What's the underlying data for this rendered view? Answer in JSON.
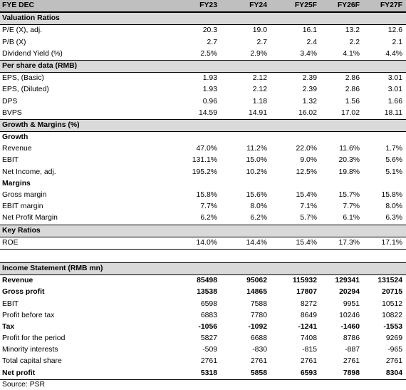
{
  "header": {
    "label": "FYE DEC",
    "years": [
      "FY23",
      "FY24",
      "FY25F",
      "FY26F",
      "FY27F"
    ]
  },
  "valuation": {
    "title": "Valuation Ratios",
    "rows": [
      {
        "label": "P/E (X), adj.",
        "values": [
          "20.3",
          "19.0",
          "16.1",
          "13.2",
          "12.6"
        ]
      },
      {
        "label": "P/B (X)",
        "values": [
          "2.7",
          "2.7",
          "2.4",
          "2.2",
          "2.1"
        ]
      },
      {
        "label": "Dividend Yield (%)",
        "values": [
          "2.5%",
          "2.9%",
          "3.4%",
          "4.1%",
          "4.4%"
        ]
      }
    ]
  },
  "per_share": {
    "title": "Per share data (RMB)",
    "rows": [
      {
        "label": "EPS, (Basic)",
        "values": [
          "1.93",
          "2.12",
          "2.39",
          "2.86",
          "3.01"
        ]
      },
      {
        "label": "EPS, (Diluted)",
        "values": [
          "1.93",
          "2.12",
          "2.39",
          "2.86",
          "3.01"
        ]
      },
      {
        "label": "DPS",
        "values": [
          "0.96",
          "1.18",
          "1.32",
          "1.56",
          "1.66"
        ]
      },
      {
        "label": "BVPS",
        "values": [
          "14.59",
          "14.91",
          "16.02",
          "17.02",
          "18.11"
        ]
      }
    ]
  },
  "growth_margins": {
    "title": "Growth & Margins (%)",
    "growth_title": "Growth",
    "growth_rows": [
      {
        "label": "Revenue",
        "values": [
          "47.0%",
          "11.2%",
          "22.0%",
          "11.6%",
          "1.7%"
        ]
      },
      {
        "label": "EBIT",
        "values": [
          "131.1%",
          "15.0%",
          "9.0%",
          "20.3%",
          "5.6%"
        ]
      },
      {
        "label": "Net Income, adj.",
        "values": [
          "195.2%",
          "10.2%",
          "12.5%",
          "19.8%",
          "5.1%"
        ]
      }
    ],
    "margins_title": "Margins",
    "margin_rows": [
      {
        "label": "Gross margin",
        "values": [
          "15.8%",
          "15.6%",
          "15.4%",
          "15.7%",
          "15.8%"
        ]
      },
      {
        "label": "EBIT margin",
        "values": [
          "7.7%",
          "8.0%",
          "7.1%",
          "7.7%",
          "8.0%"
        ]
      },
      {
        "label": "Net Profit Margin",
        "values": [
          "6.2%",
          "6.2%",
          "5.7%",
          "6.1%",
          "6.3%"
        ]
      }
    ]
  },
  "key_ratios": {
    "title": "Key Ratios",
    "rows": [
      {
        "label": "ROE",
        "values": [
          "14.0%",
          "14.4%",
          "15.4%",
          "17.3%",
          "17.1%"
        ]
      }
    ]
  },
  "income_statement": {
    "title": "Income Statement (RMB mn)",
    "rows": [
      {
        "label": "Revenue",
        "bold": true,
        "values": [
          "85498",
          "95062",
          "115932",
          "129341",
          "131524"
        ]
      },
      {
        "label": "Gross profit",
        "bold": true,
        "values": [
          "13538",
          "14865",
          "17807",
          "20294",
          "20715"
        ]
      },
      {
        "label": "EBIT",
        "bold": false,
        "values": [
          "6598",
          "7588",
          "8272",
          "9951",
          "10512"
        ]
      },
      {
        "label": "Profit before tax",
        "bold": false,
        "values": [
          "6883",
          "7780",
          "8649",
          "10246",
          "10822"
        ]
      },
      {
        "label": "Tax",
        "bold": true,
        "values": [
          "-1056",
          "-1092",
          "-1241",
          "-1460",
          "-1553"
        ]
      },
      {
        "label": "Profit for the period",
        "bold": false,
        "values": [
          "5827",
          "6688",
          "7408",
          "8786",
          "9269"
        ]
      },
      {
        "label": "Minority interests",
        "bold": false,
        "values": [
          "-509",
          "-830",
          "-815",
          "-887",
          "-965"
        ]
      },
      {
        "label": "Total capital share",
        "bold": false,
        "values": [
          "2761",
          "2761",
          "2761",
          "2761",
          "2761"
        ]
      },
      {
        "label": "Net profit",
        "bold": true,
        "values": [
          "5318",
          "5858",
          "6593",
          "7898",
          "8304"
        ]
      }
    ]
  },
  "source": "Source: PSR"
}
